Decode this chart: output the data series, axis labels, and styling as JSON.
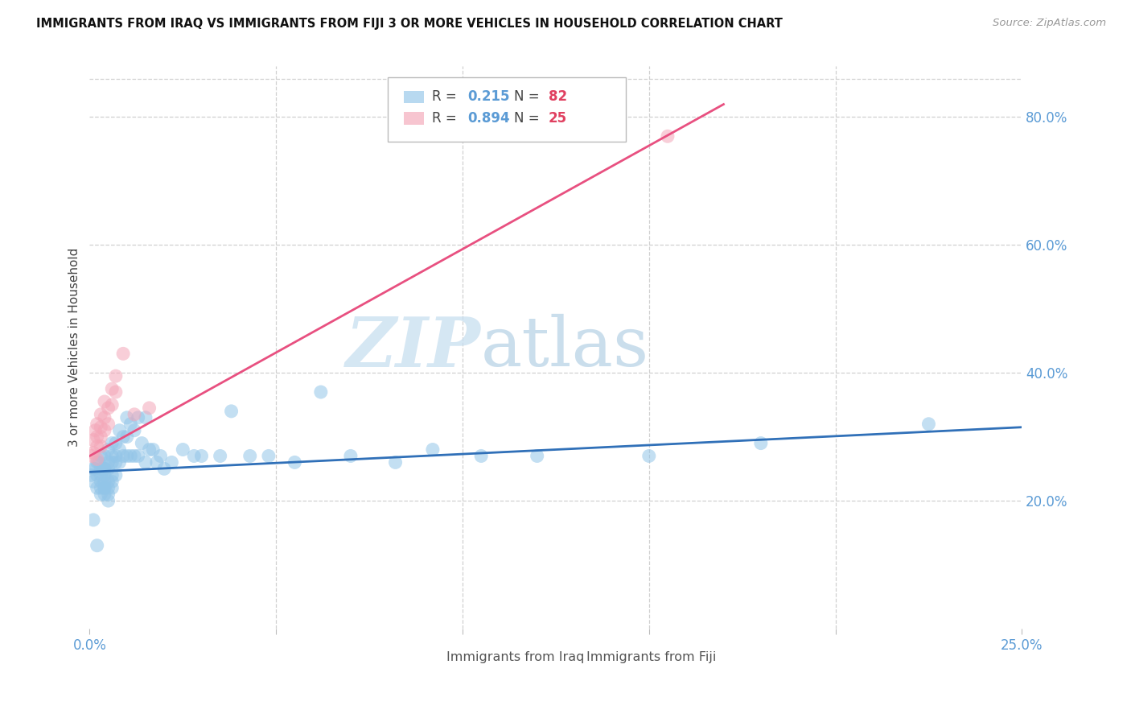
{
  "title": "IMMIGRANTS FROM IRAQ VS IMMIGRANTS FROM FIJI 3 OR MORE VEHICLES IN HOUSEHOLD CORRELATION CHART",
  "source": "Source: ZipAtlas.com",
  "ylabel": "3 or more Vehicles in Household",
  "x_label_iraq": "Immigrants from Iraq",
  "x_label_fiji": "Immigrants from Fiji",
  "x_min": 0.0,
  "x_max": 0.25,
  "y_min": 0.0,
  "y_max": 0.88,
  "y_ticks": [
    0.2,
    0.4,
    0.6,
    0.8
  ],
  "y_tick_labels": [
    "20.0%",
    "40.0%",
    "60.0%",
    "80.0%"
  ],
  "x_ticks": [
    0.0,
    0.05,
    0.1,
    0.15,
    0.2,
    0.25
  ],
  "iraq_R": 0.215,
  "iraq_N": 82,
  "fiji_R": 0.894,
  "fiji_N": 25,
  "iraq_color": "#92c5e8",
  "fiji_color": "#f4a6b8",
  "iraq_line_color": "#3070b8",
  "fiji_line_color": "#e85080",
  "watermark_zip": "ZIP",
  "watermark_atlas": "atlas",
  "iraq_scatter_x": [
    0.0005,
    0.001,
    0.001,
    0.0015,
    0.002,
    0.002,
    0.002,
    0.0025,
    0.003,
    0.003,
    0.003,
    0.003,
    0.003,
    0.003,
    0.0035,
    0.004,
    0.004,
    0.004,
    0.004,
    0.004,
    0.004,
    0.004,
    0.004,
    0.005,
    0.005,
    0.005,
    0.005,
    0.005,
    0.005,
    0.005,
    0.006,
    0.006,
    0.006,
    0.006,
    0.006,
    0.006,
    0.007,
    0.007,
    0.007,
    0.007,
    0.008,
    0.008,
    0.008,
    0.009,
    0.009,
    0.01,
    0.01,
    0.01,
    0.011,
    0.011,
    0.012,
    0.012,
    0.013,
    0.013,
    0.014,
    0.015,
    0.015,
    0.016,
    0.017,
    0.018,
    0.019,
    0.02,
    0.022,
    0.025,
    0.028,
    0.03,
    0.035,
    0.038,
    0.043,
    0.048,
    0.055,
    0.062,
    0.07,
    0.082,
    0.092,
    0.105,
    0.12,
    0.15,
    0.18,
    0.225,
    0.001,
    0.002
  ],
  "iraq_scatter_y": [
    0.24,
    0.25,
    0.23,
    0.25,
    0.26,
    0.24,
    0.22,
    0.26,
    0.27,
    0.25,
    0.23,
    0.22,
    0.21,
    0.24,
    0.25,
    0.27,
    0.25,
    0.24,
    0.22,
    0.21,
    0.25,
    0.23,
    0.22,
    0.28,
    0.26,
    0.25,
    0.23,
    0.22,
    0.21,
    0.2,
    0.29,
    0.27,
    0.26,
    0.24,
    0.23,
    0.22,
    0.29,
    0.27,
    0.26,
    0.24,
    0.31,
    0.28,
    0.26,
    0.3,
    0.27,
    0.33,
    0.3,
    0.27,
    0.32,
    0.27,
    0.31,
    0.27,
    0.33,
    0.27,
    0.29,
    0.33,
    0.26,
    0.28,
    0.28,
    0.26,
    0.27,
    0.25,
    0.26,
    0.28,
    0.27,
    0.27,
    0.27,
    0.34,
    0.27,
    0.27,
    0.26,
    0.37,
    0.27,
    0.26,
    0.28,
    0.27,
    0.27,
    0.27,
    0.29,
    0.32,
    0.17,
    0.13
  ],
  "fiji_scatter_x": [
    0.0005,
    0.001,
    0.001,
    0.0015,
    0.002,
    0.002,
    0.002,
    0.002,
    0.003,
    0.003,
    0.003,
    0.003,
    0.004,
    0.004,
    0.004,
    0.005,
    0.005,
    0.006,
    0.006,
    0.007,
    0.007,
    0.009,
    0.012,
    0.016,
    0.155
  ],
  "fiji_scatter_y": [
    0.27,
    0.295,
    0.275,
    0.31,
    0.32,
    0.3,
    0.285,
    0.265,
    0.335,
    0.315,
    0.3,
    0.285,
    0.355,
    0.33,
    0.31,
    0.345,
    0.32,
    0.375,
    0.35,
    0.395,
    0.37,
    0.43,
    0.335,
    0.345,
    0.77
  ],
  "fiji_line_x0": 0.0,
  "fiji_line_y0": 0.27,
  "fiji_line_x1": 0.17,
  "fiji_line_y1": 0.82,
  "iraq_line_x0": 0.0,
  "iraq_line_y0": 0.245,
  "iraq_line_x1": 0.25,
  "iraq_line_y1": 0.315
}
